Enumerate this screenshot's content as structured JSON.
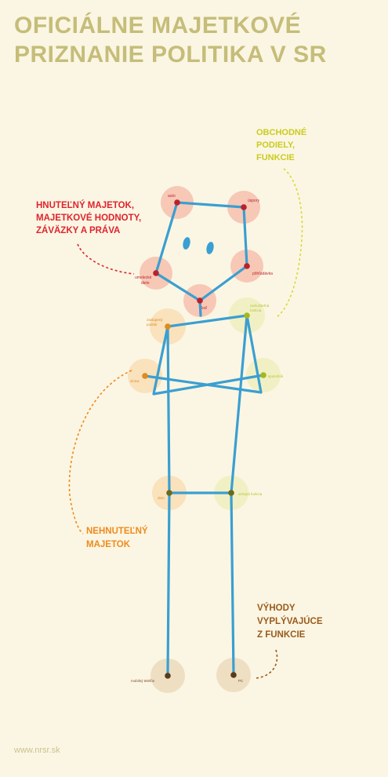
{
  "title": {
    "line1": "OFICIÁLNE MAJETKOVÉ",
    "line2": "PRIZNANIE POLITIKA V SR"
  },
  "categories": {
    "movable": {
      "lines": [
        "HNUTEĽNÝ MAJETOK,",
        "MAJETKOVÉ HODNOTY,",
        "ZÁVÄZKY A PRÁVA"
      ],
      "color": "#e0232f"
    },
    "business": {
      "lines": [
        "OBCHODNÉ",
        "PODIELY,",
        "FUNKCIE"
      ],
      "color": "#cbcb20"
    },
    "immovable": {
      "lines": [
        "NEHNUTEĽNÝ",
        "MAJETOK"
      ],
      "color": "#ef8a1d"
    },
    "benefits": {
      "lines": [
        "VÝHODY",
        "VYPLÝVAJÚCE",
        "Z FUNKCIE"
      ],
      "color": "#9a5a1c"
    }
  },
  "nodes": {
    "auto": "auto",
    "uspory": "úspory",
    "umelecke_dielo_1": "umelecké",
    "umelecke_dielo_2": "dielo",
    "pohladavka": "pôhľadávka",
    "lod": "loď",
    "zastupujuci_podnik_1": "zastúpený",
    "zastupujuci_podnik_2": "podnik",
    "nezlucitelna_1": "nezlučiteľná",
    "nezlucitelna_2": "funkcia",
    "vinica": "vinica",
    "spolocnik": "spoločník",
    "dom": "dom",
    "verejna_funkcia": "verejná funkcia",
    "mobilny_telefon": "mobilný telefón",
    "pc": "PC"
  },
  "colors": {
    "figure_line": "#3a9fd2",
    "background": "#fbf6e3",
    "title": "#c5bd79"
  },
  "footer": {
    "url": "www.nrsr.sk"
  }
}
